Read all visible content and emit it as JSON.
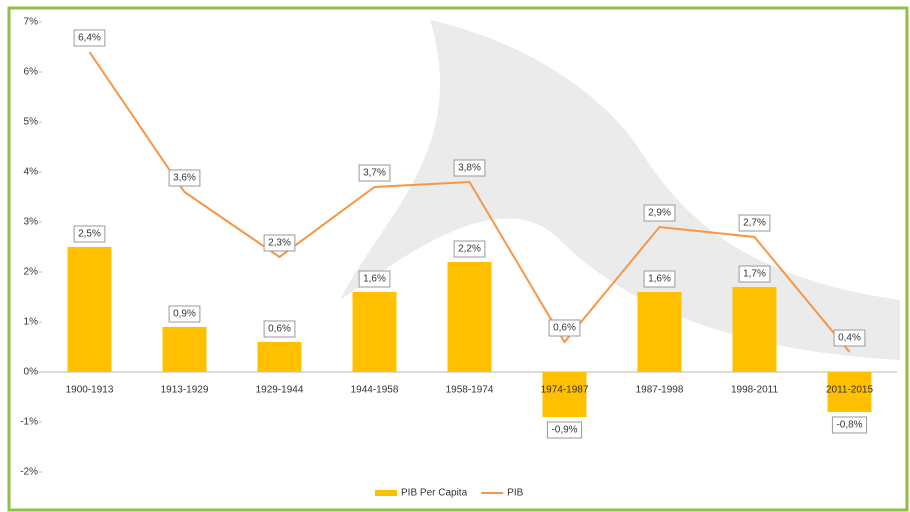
{
  "chart_data": {
    "type": "combo",
    "categories": [
      "1900-1913",
      "1913-1929",
      "1929-1944",
      "1944-1958",
      "1958-1974",
      "1974-1987",
      "1987-1998",
      "1998-2011",
      "2011-2015"
    ],
    "series": [
      {
        "name": "PIB Per Capita",
        "type": "bar",
        "color": "#ffc000",
        "values": [
          2.5,
          0.9,
          0.6,
          1.6,
          2.2,
          -0.9,
          1.6,
          1.7,
          -0.8
        ],
        "value_labels": [
          "2,5%",
          "0,9%",
          "0,6%",
          "1,6%",
          "2,2%",
          "-0,9%",
          "1,6%",
          "1,7%",
          "-0,8%"
        ]
      },
      {
        "name": "PIB",
        "type": "line",
        "color": "#f79646",
        "values": [
          6.4,
          3.6,
          2.3,
          3.7,
          3.8,
          0.6,
          2.9,
          2.7,
          0.4
        ],
        "value_labels": [
          "6,4%",
          "3,6%",
          "2,3%",
          "3,7%",
          "3,8%",
          "0,6%",
          "2,9%",
          "2,7%",
          "0,4%"
        ]
      }
    ],
    "ylim": [
      -2,
      7
    ],
    "yticks": [
      {
        "value": -2,
        "label": "-2%"
      },
      {
        "value": -1,
        "label": "-1%"
      },
      {
        "value": 0,
        "label": "0%"
      },
      {
        "value": 1,
        "label": "1%"
      },
      {
        "value": 2,
        "label": "2%"
      },
      {
        "value": 3,
        "label": "3%"
      },
      {
        "value": 4,
        "label": "4%"
      },
      {
        "value": 5,
        "label": "5%"
      },
      {
        "value": 6,
        "label": "6%"
      },
      {
        "value": 7,
        "label": "7%"
      }
    ],
    "grid": false,
    "legend": "bottom"
  }
}
